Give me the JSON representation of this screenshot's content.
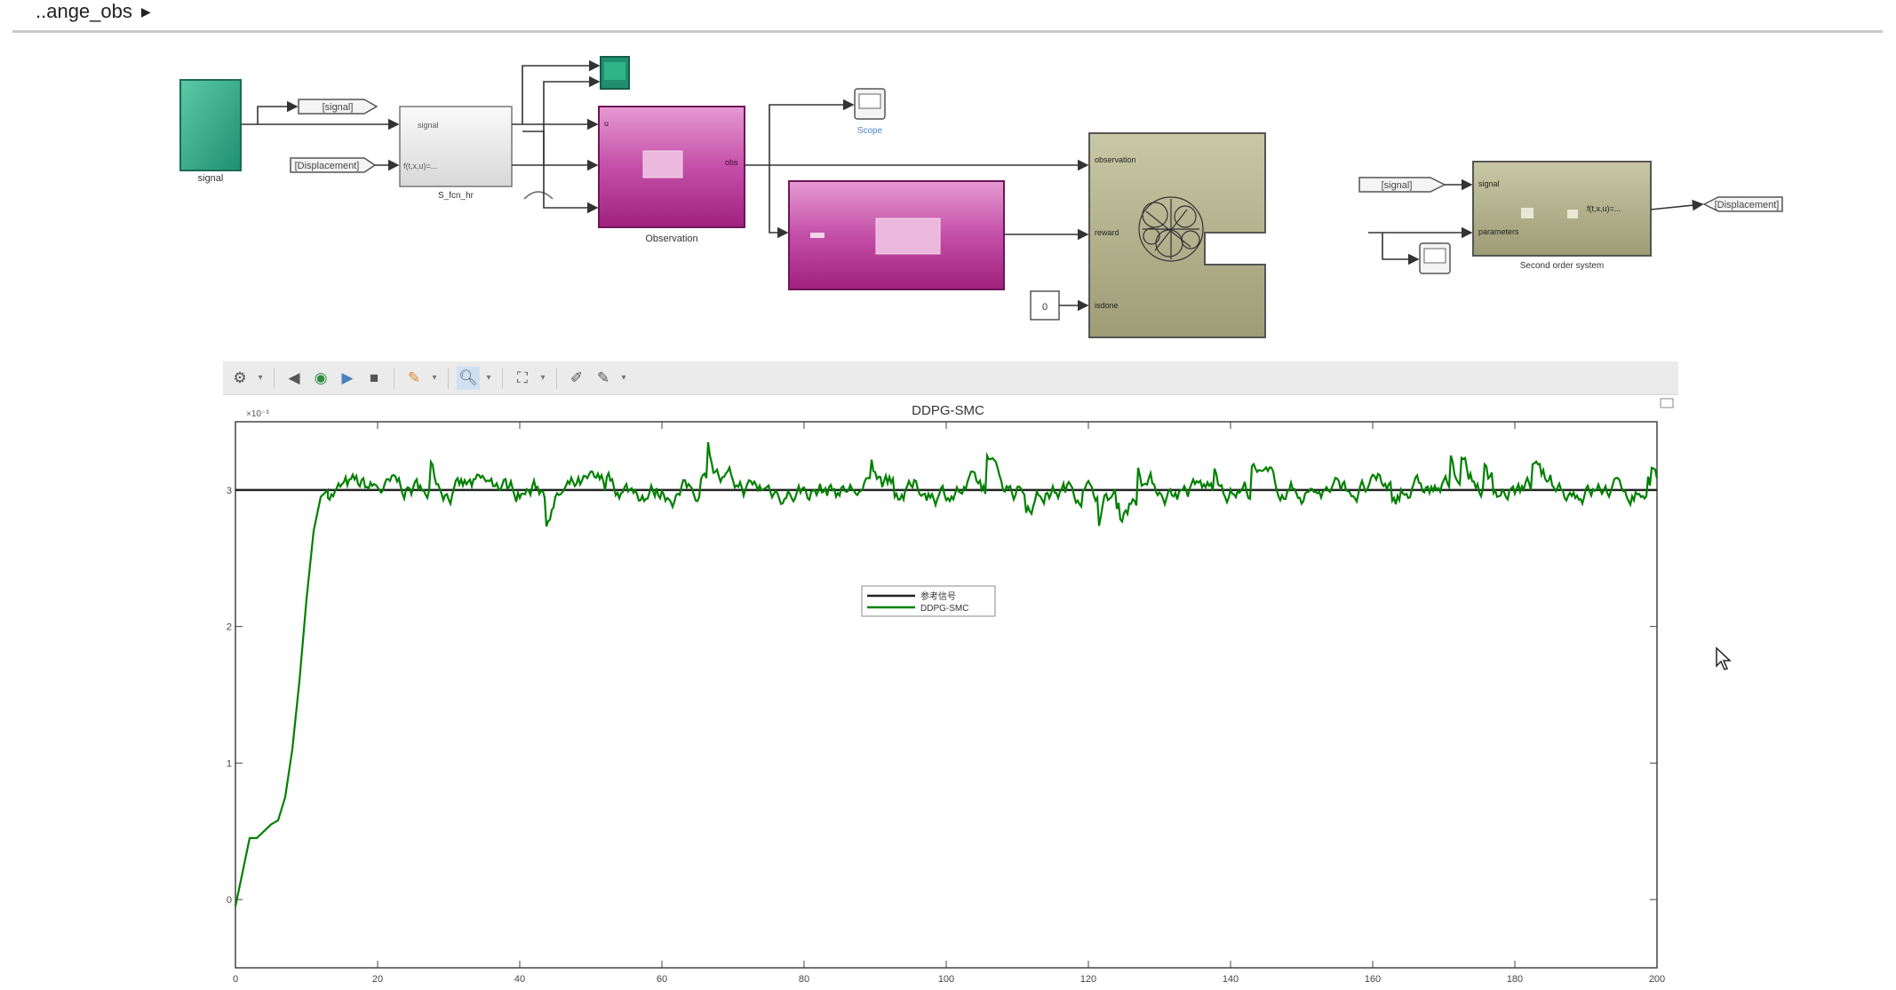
{
  "breadcrumb": {
    "model": "..ange_obs",
    "arrow": "▶"
  },
  "blocks": {
    "signal_source": "signal",
    "goto_signal": "[signal]",
    "from_displacement": "[Displacement]",
    "s_func": "S_fcn_hr",
    "observation": "Observation",
    "scope1": "Scope",
    "agent_obs_port": "observation",
    "agent_reward_port": "reward",
    "agent_isdone_port": "isdone",
    "constant_value": "0",
    "from_signal_right": "[signal]",
    "second_order": "Second order system",
    "goto_displacement": "[Displacement]",
    "port_signal": "signal",
    "port_params": "parameters",
    "func_text": "f(t,x,u)=...",
    "port_in": "u",
    "port_obs": "obs"
  },
  "toolbar": {
    "icons": [
      "gear-icon",
      "dropdown-icon",
      "step-back-icon",
      "run-icon",
      "step-forward-icon",
      "stop-icon",
      "highlight-icon",
      "dropdown-icon",
      "zoom-icon",
      "dropdown-icon",
      "autoscale-icon",
      "dropdown-icon",
      "cursor-measure-icon",
      "style-icon",
      "dropdown-icon"
    ]
  },
  "chart_data": {
    "type": "line",
    "title": "DDPG-SMC",
    "exponent_label": "×10⁻³",
    "xlabel": "",
    "ylabel": "",
    "xlim": [
      0,
      200
    ],
    "ylim": [
      -0.5,
      3.5
    ],
    "x_ticks": [
      "0",
      "20",
      "40",
      "60",
      "80",
      "100",
      "120",
      "140",
      "160",
      "180",
      "200"
    ],
    "y_ticks": [
      "0",
      "1",
      "2",
      "3"
    ],
    "legend": {
      "placement": "center",
      "entries": [
        "参考信号",
        "DDPG-SMC"
      ]
    },
    "series": [
      {
        "name": "参考信号",
        "color": "#222222",
        "reference_value": 3
      },
      {
        "name": "DDPG-SMC",
        "color": "#008000",
        "transient_x": [
          0,
          1,
          2,
          3,
          4,
          5,
          6,
          7,
          8,
          9,
          10,
          11,
          12,
          13
        ],
        "transient_y": [
          -0.05,
          0.2,
          0.45,
          0.45,
          0.5,
          0.55,
          0.58,
          0.75,
          1.1,
          1.6,
          2.2,
          2.7,
          2.95,
          3.0
        ],
        "steady_mean": 3.0,
        "steady_noise_band": [
          2.7,
          3.35
        ]
      }
    ]
  },
  "colors": {
    "sim_green": "#2aa57e",
    "magenta": "#c0349a",
    "olive": "#a8a882",
    "line_green": "#008000"
  }
}
